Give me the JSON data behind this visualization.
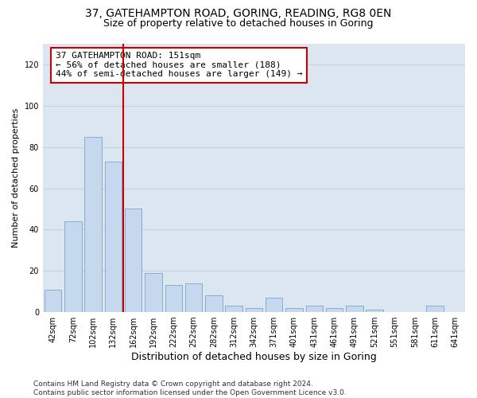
{
  "title_line1": "37, GATEHAMPTON ROAD, GORING, READING, RG8 0EN",
  "title_line2": "Size of property relative to detached houses in Goring",
  "xlabel": "Distribution of detached houses by size in Goring",
  "ylabel": "Number of detached properties",
  "footnote": "Contains HM Land Registry data © Crown copyright and database right 2024.\nContains public sector information licensed under the Open Government Licence v3.0.",
  "categories": [
    "42sqm",
    "72sqm",
    "102sqm",
    "132sqm",
    "162sqm",
    "192sqm",
    "222sqm",
    "252sqm",
    "282sqm",
    "312sqm",
    "342sqm",
    "371sqm",
    "401sqm",
    "431sqm",
    "461sqm",
    "491sqm",
    "521sqm",
    "551sqm",
    "581sqm",
    "611sqm",
    "641sqm"
  ],
  "values": [
    11,
    44,
    85,
    73,
    50,
    19,
    13,
    14,
    8,
    3,
    2,
    7,
    2,
    3,
    2,
    3,
    1,
    0,
    0,
    3,
    0
  ],
  "bar_color": "#c5d8ed",
  "bar_edge_color": "#88aece",
  "annotation_text": "37 GATEHAMPTON ROAD: 151sqm\n← 56% of detached houses are smaller (188)\n44% of semi-detached houses are larger (149) →",
  "annotation_box_color": "#ffffff",
  "annotation_box_edge_color": "#cc0000",
  "vline_color": "#cc0000",
  "vline_x": 3.5,
  "ylim": [
    0,
    130
  ],
  "yticks": [
    0,
    20,
    40,
    60,
    80,
    100,
    120
  ],
  "grid_color": "#c8d0dc",
  "bg_color": "#dce6f0",
  "title_fontsize": 10,
  "subtitle_fontsize": 9,
  "xlabel_fontsize": 9,
  "ylabel_fontsize": 8,
  "tick_fontsize": 7,
  "annotation_fontsize": 8,
  "footnote_fontsize": 6.5
}
